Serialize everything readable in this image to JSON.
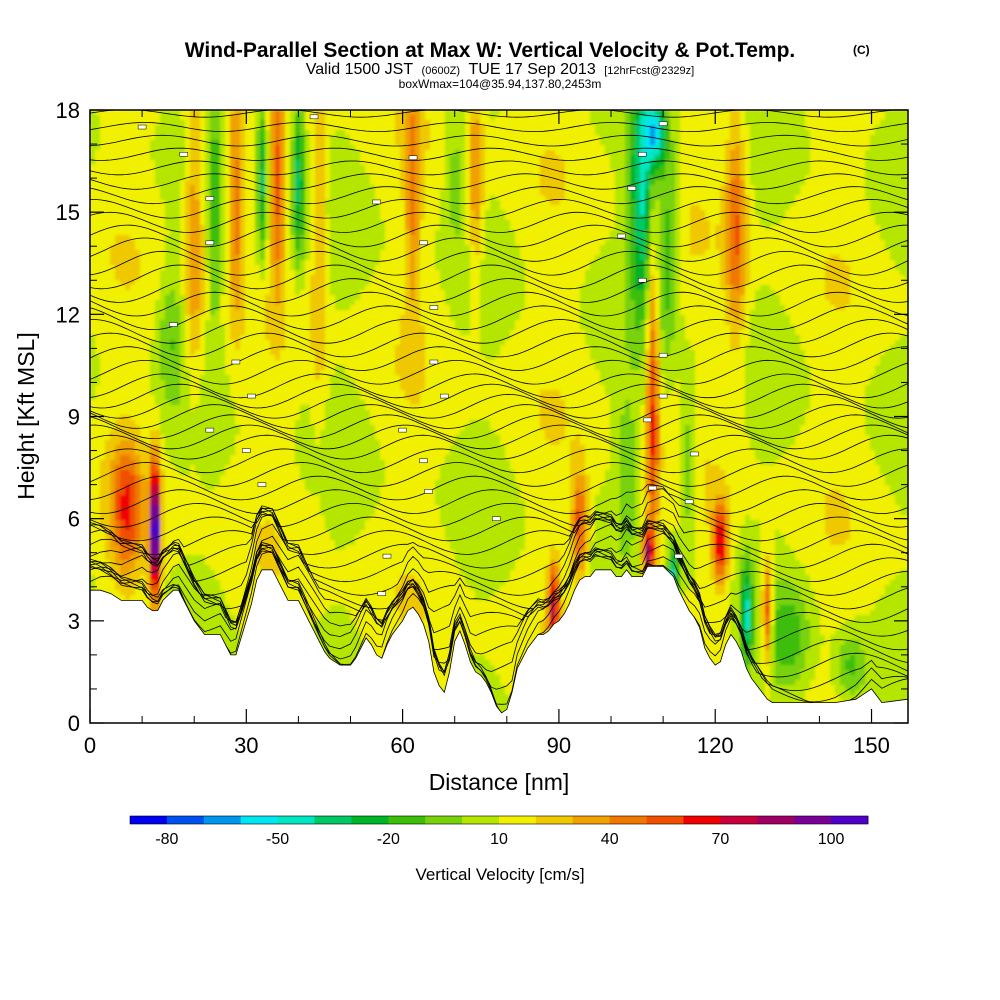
{
  "header": {
    "title": "Wind-Parallel Section at Max W: Vertical Velocity & Pot.Temp.",
    "copyright": "(C)",
    "valid_prefix": "Valid 1500 JST",
    "valid_utc": "(0600Z)",
    "valid_date": "TUE 17 Sep 2013",
    "forecast": "[12hrFcst@2329z]",
    "box_info": "boxWmax=104@35.94,137.80,2453m"
  },
  "chart_data": {
    "type": "heatmap",
    "xlabel": "Distance [nm]",
    "ylabel": "Height [Kft MSL]",
    "xlim": [
      0,
      157
    ],
    "ylim": [
      0,
      18
    ],
    "x_ticks": [
      "0",
      "30",
      "60",
      "90",
      "120",
      "150"
    ],
    "x_tick_values": [
      0,
      30,
      60,
      90,
      120,
      150
    ],
    "y_ticks": [
      "0",
      "3",
      "6",
      "9",
      "12",
      "15",
      "18"
    ],
    "y_tick_values": [
      0,
      3,
      6,
      9,
      12,
      15,
      18
    ],
    "terrain_height_kft": [
      [
        0,
        3.9
      ],
      [
        2,
        3.9
      ],
      [
        4,
        3.8
      ],
      [
        6,
        3.6
      ],
      [
        8,
        3.6
      ],
      [
        10,
        3.6
      ],
      [
        11,
        3.4
      ],
      [
        12,
        3.3
      ],
      [
        13,
        3.3
      ],
      [
        14,
        3.6
      ],
      [
        16,
        3.9
      ],
      [
        17,
        3.9
      ],
      [
        18,
        3.6
      ],
      [
        19,
        3.3
      ],
      [
        20,
        3.0
      ],
      [
        21,
        2.8
      ],
      [
        22,
        2.6
      ],
      [
        24,
        2.6
      ],
      [
        25,
        2.6
      ],
      [
        26,
        2.3
      ],
      [
        27,
        2.0
      ],
      [
        28,
        2.0
      ],
      [
        29,
        2.5
      ],
      [
        30,
        3.0
      ],
      [
        31,
        3.5
      ],
      [
        32,
        4.2
      ],
      [
        33,
        4.5
      ],
      [
        35,
        4.5
      ],
      [
        36,
        4.2
      ],
      [
        37,
        3.9
      ],
      [
        38,
        3.6
      ],
      [
        39,
        3.6
      ],
      [
        40,
        3.6
      ],
      [
        41,
        3.3
      ],
      [
        42,
        3.0
      ],
      [
        43,
        2.7
      ],
      [
        44,
        2.4
      ],
      [
        45,
        2.1
      ],
      [
        46,
        1.9
      ],
      [
        47,
        1.8
      ],
      [
        48,
        1.7
      ],
      [
        50,
        1.7
      ],
      [
        51,
        1.9
      ],
      [
        52,
        2.2
      ],
      [
        53,
        2.5
      ],
      [
        54,
        2.3
      ],
      [
        55,
        2.0
      ],
      [
        56,
        1.9
      ],
      [
        57,
        2.3
      ],
      [
        58,
        2.6
      ],
      [
        59,
        2.8
      ],
      [
        60,
        3.0
      ],
      [
        61,
        3.3
      ],
      [
        62,
        3.4
      ],
      [
        63,
        3.2
      ],
      [
        64,
        2.9
      ],
      [
        65,
        2.4
      ],
      [
        66,
        1.5
      ],
      [
        67,
        1.1
      ],
      [
        68,
        0.9
      ],
      [
        69,
        1.5
      ],
      [
        70,
        2.4
      ],
      [
        71,
        2.7
      ],
      [
        72,
        2.3
      ],
      [
        73,
        1.8
      ],
      [
        74,
        1.5
      ],
      [
        75,
        1.4
      ],
      [
        76,
        1.2
      ],
      [
        77,
        0.9
      ],
      [
        78,
        0.5
      ],
      [
        79,
        0.3
      ],
      [
        80,
        0.4
      ],
      [
        81,
        0.9
      ],
      [
        82,
        1.6
      ],
      [
        83,
        1.9
      ],
      [
        84,
        2.2
      ],
      [
        85,
        2.4
      ],
      [
        86,
        2.6
      ],
      [
        87,
        2.6
      ],
      [
        88,
        2.7
      ],
      [
        89,
        2.9
      ],
      [
        90,
        3.0
      ],
      [
        91,
        3.2
      ],
      [
        92,
        3.5
      ],
      [
        93,
        3.9
      ],
      [
        94,
        4.2
      ],
      [
        95,
        4.3
      ],
      [
        96,
        4.3
      ],
      [
        97,
        4.5
      ],
      [
        100,
        4.5
      ],
      [
        101,
        4.3
      ],
      [
        102,
        4.3
      ],
      [
        103,
        4.5
      ],
      [
        104,
        4.3
      ],
      [
        106,
        4.3
      ],
      [
        107,
        4.6
      ],
      [
        110,
        4.6
      ],
      [
        112,
        4.3
      ],
      [
        113,
        3.9
      ],
      [
        114,
        3.6
      ],
      [
        115,
        3.3
      ],
      [
        116,
        3.1
      ],
      [
        117,
        2.8
      ],
      [
        118,
        2.2
      ],
      [
        119,
        1.9
      ],
      [
        120,
        1.7
      ],
      [
        121,
        1.8
      ],
      [
        122,
        2.3
      ],
      [
        123,
        2.6
      ],
      [
        124,
        2.4
      ],
      [
        125,
        2.1
      ],
      [
        126,
        1.6
      ],
      [
        127,
        1.3
      ],
      [
        128,
        1.1
      ],
      [
        129,
        0.9
      ],
      [
        130,
        0.7
      ],
      [
        131,
        0.6
      ],
      [
        143,
        0.6
      ],
      [
        147,
        0.7
      ],
      [
        148,
        0.8
      ],
      [
        150,
        1.0
      ],
      [
        151,
        0.8
      ],
      [
        152,
        0.6
      ],
      [
        157,
        0.7
      ]
    ],
    "plumes": [
      {
        "x": 7,
        "z": 6.3,
        "wx": 3.0,
        "wz": 1.9,
        "w": 44
      },
      {
        "x": 12.5,
        "z": 5.6,
        "wx": 1.0,
        "wz": 2.0,
        "w": 104
      },
      {
        "x": 15.5,
        "z": 11.5,
        "wx": 2.5,
        "wz": 2.0,
        "w": -20
      },
      {
        "x": 20,
        "z": 14.5,
        "wx": 1.8,
        "wz": 4.5,
        "w": 30
      },
      {
        "x": 24,
        "z": 15.0,
        "wx": 1.2,
        "wz": 4.0,
        "w": -25
      },
      {
        "x": 28,
        "z": 15.5,
        "wx": 1.3,
        "wz": 3.5,
        "w": 35
      },
      {
        "x": 33,
        "z": 16.0,
        "wx": 1.0,
        "wz": 2.5,
        "w": -45
      },
      {
        "x": 36,
        "z": 15.8,
        "wx": 1.3,
        "wz": 3.0,
        "w": 40
      },
      {
        "x": 40,
        "z": 16.0,
        "wx": 1.2,
        "wz": 2.5,
        "w": -45
      },
      {
        "x": 44,
        "z": 14.0,
        "wx": 1.5,
        "wz": 5.0,
        "w": 20
      },
      {
        "x": 62,
        "z": 15.5,
        "wx": 1.5,
        "wz": 3.5,
        "w": 30
      },
      {
        "x": 70,
        "z": 16.5,
        "wx": 2.0,
        "wz": 2.5,
        "w": -15
      },
      {
        "x": 74,
        "z": 16.0,
        "wx": 1.5,
        "wz": 3.0,
        "w": 30
      },
      {
        "x": 89,
        "z": 3.5,
        "wx": 1.0,
        "wz": 1.2,
        "w": 60
      },
      {
        "x": 94,
        "z": 5.8,
        "wx": 1.5,
        "wz": 1.5,
        "w": 45
      },
      {
        "x": 103,
        "z": 7.6,
        "wx": 2.0,
        "wz": 2.0,
        "w": -20
      },
      {
        "x": 108,
        "z": 9.5,
        "wx": 1.2,
        "wz": 5.5,
        "w": 50
      },
      {
        "x": 107,
        "z": 5.0,
        "wx": 1.0,
        "wz": 0.7,
        "w": 70
      },
      {
        "x": 106,
        "z": 15.5,
        "wx": 2.5,
        "wz": 3.5,
        "w": -55
      },
      {
        "x": 108.5,
        "z": 17.3,
        "wx": 2.0,
        "wz": 1.0,
        "w": -60
      },
      {
        "x": 111,
        "z": 14.0,
        "wx": 2.0,
        "wz": 3.0,
        "w": -30
      },
      {
        "x": 112,
        "z": 4.4,
        "wx": 1.0,
        "wz": 0.8,
        "w": -55
      },
      {
        "x": 115,
        "z": 7.5,
        "wx": 1.5,
        "wz": 2.5,
        "w": -25
      },
      {
        "x": 121,
        "z": 5.3,
        "wx": 1.5,
        "wz": 1.2,
        "w": 60
      },
      {
        "x": 124,
        "z": 14.5,
        "wx": 2.0,
        "wz": 3.5,
        "w": 38
      },
      {
        "x": 126,
        "z": 3.2,
        "wx": 1.2,
        "wz": 1.5,
        "w": -50
      },
      {
        "x": 130,
        "z": 3.2,
        "wx": 1.0,
        "wz": 1.5,
        "w": 55
      },
      {
        "x": 134,
        "z": 2.5,
        "wx": 4.0,
        "wz": 1.5,
        "w": -25
      },
      {
        "x": 146,
        "z": 1.6,
        "wx": 3.0,
        "wz": 1.0,
        "w": -25
      }
    ],
    "theta_isentropes": {
      "base_kft": [
        0.5,
        0.9,
        1.3,
        1.7,
        2.1,
        2.5,
        2.9,
        3.3,
        3.7,
        4.1,
        4.5,
        4.9,
        5.3,
        5.7,
        6.1,
        6.5,
        6.9,
        7.3,
        7.7,
        8.1,
        8.4,
        8.7,
        9.0,
        9.3,
        9.6,
        9.9,
        10.3,
        10.7,
        11.1,
        11.5,
        11.9,
        12.3,
        12.7,
        13.1,
        13.5,
        13.9,
        14.3,
        14.7,
        15.1,
        15.5,
        15.9,
        16.3,
        16.7,
        17.1,
        17.5,
        17.9
      ],
      "marked_labels": [
        {
          "x": 10,
          "z": 17.5
        },
        {
          "x": 18,
          "z": 16.7
        },
        {
          "x": 23,
          "z": 15.4
        },
        {
          "x": 23,
          "z": 14.1
        },
        {
          "x": 16,
          "z": 11.7
        },
        {
          "x": 28,
          "z": 10.6
        },
        {
          "x": 31,
          "z": 9.6
        },
        {
          "x": 23,
          "z": 8.6
        },
        {
          "x": 30,
          "z": 8.0
        },
        {
          "x": 33,
          "z": 7.0
        },
        {
          "x": 43,
          "z": 17.8
        },
        {
          "x": 62,
          "z": 16.6
        },
        {
          "x": 55,
          "z": 15.3
        },
        {
          "x": 64,
          "z": 14.1
        },
        {
          "x": 66,
          "z": 12.2
        },
        {
          "x": 66,
          "z": 10.6
        },
        {
          "x": 68,
          "z": 9.6
        },
        {
          "x": 60,
          "z": 8.6
        },
        {
          "x": 64,
          "z": 7.7
        },
        {
          "x": 65,
          "z": 6.8
        },
        {
          "x": 78,
          "z": 6.0
        },
        {
          "x": 57,
          "z": 4.9
        },
        {
          "x": 56,
          "z": 3.8
        },
        {
          "x": 110,
          "z": 17.6
        },
        {
          "x": 106,
          "z": 16.7
        },
        {
          "x": 104,
          "z": 15.7
        },
        {
          "x": 102,
          "z": 14.3
        },
        {
          "x": 106,
          "z": 13.0
        },
        {
          "x": 110,
          "z": 10.8
        },
        {
          "x": 110,
          "z": 9.6
        },
        {
          "x": 107,
          "z": 8.9
        },
        {
          "x": 116,
          "z": 7.9
        },
        {
          "x": 108,
          "z": 6.9
        },
        {
          "x": 115,
          "z": 6.5
        },
        {
          "x": 113,
          "z": 4.9
        }
      ]
    }
  },
  "colorbar": {
    "colors": [
      "#0000f0",
      "#0050f0",
      "#0096f0",
      "#00e6f0",
      "#00e6c0",
      "#00c864",
      "#00b428",
      "#3cbe0a",
      "#78d20a",
      "#b4e600",
      "#f0f000",
      "#f0c800",
      "#f0a000",
      "#f07800",
      "#f05000",
      "#f00000",
      "#c8003c",
      "#a00064",
      "#780096",
      "#5000c8"
    ],
    "labels": [
      "-80",
      "-50",
      "-20",
      "10",
      "40",
      "70",
      "100"
    ],
    "label": "Vertical Velocity [cm/s]"
  }
}
